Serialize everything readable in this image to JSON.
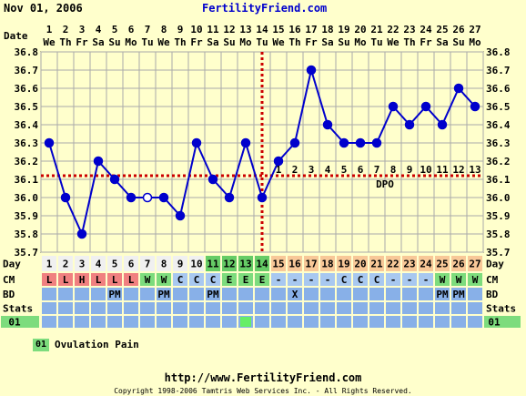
{
  "header": {
    "date": "Nov 01, 2006",
    "site": "FertilityFriend.com"
  },
  "row_labels": {
    "date": "Date",
    "day": "Day",
    "cm": "CM",
    "bd": "BD",
    "stats": "Stats",
    "custom": "01"
  },
  "chart_data": {
    "type": "line",
    "x": [
      1,
      2,
      3,
      4,
      5,
      6,
      7,
      8,
      9,
      10,
      11,
      12,
      13,
      14,
      15,
      16,
      17,
      18,
      19,
      20,
      21,
      22,
      23,
      24,
      25,
      26,
      27
    ],
    "date_numbers": [
      "1",
      "2",
      "3",
      "4",
      "5",
      "6",
      "7",
      "8",
      "9",
      "10",
      "11",
      "12",
      "13",
      "14",
      "15",
      "16",
      "17",
      "18",
      "19",
      "20",
      "21",
      "22",
      "23",
      "24",
      "25",
      "26",
      "27"
    ],
    "weekdays": [
      "We",
      "Th",
      "Fr",
      "Sa",
      "Su",
      "Mo",
      "Tu",
      "We",
      "Th",
      "Fr",
      "Sa",
      "Su",
      "Mo",
      "Tu",
      "We",
      "Th",
      "Fr",
      "Sa",
      "Su",
      "Mo",
      "Tu",
      "We",
      "Th",
      "Fr",
      "Sa",
      "Su",
      "Mo"
    ],
    "temperatures": [
      36.3,
      36.0,
      35.8,
      36.2,
      36.1,
      36.0,
      36.0,
      36.0,
      35.9,
      36.3,
      36.1,
      36.0,
      36.3,
      36.0,
      36.2,
      36.3,
      36.7,
      36.4,
      36.3,
      36.3,
      36.3,
      36.5,
      36.4,
      36.5,
      36.4,
      36.6,
      36.5
    ],
    "hollow_points": [
      7
    ],
    "ylim": [
      35.7,
      36.8
    ],
    "yticks": [
      "36.8",
      "36.7",
      "36.6",
      "36.5",
      "36.4",
      "36.3",
      "36.2",
      "36.1",
      "36.0",
      "35.9",
      "35.8",
      "35.7"
    ],
    "coverline": 36.12,
    "ovulation_day": 14,
    "dpo_numbers": [
      "1",
      "2",
      "3",
      "4",
      "5",
      "6",
      "7",
      "8",
      "9",
      "10",
      "11",
      "12",
      "13"
    ],
    "dpo_label": "DPO",
    "cycle_days": [
      "1",
      "2",
      "3",
      "4",
      "5",
      "6",
      "7",
      "8",
      "9",
      "10",
      "11",
      "12",
      "13",
      "14",
      "15",
      "16",
      "17",
      "18",
      "19",
      "20",
      "21",
      "22",
      "23",
      "24",
      "25",
      "26",
      "27"
    ],
    "cycle_phases": [
      "none",
      "none",
      "none",
      "none",
      "none",
      "none",
      "none",
      "none",
      "none",
      "none",
      "fertile",
      "fertile",
      "fertile",
      "fertile",
      "luteal",
      "luteal",
      "luteal",
      "luteal",
      "luteal",
      "luteal",
      "luteal",
      "luteal",
      "luteal",
      "luteal",
      "luteal",
      "luteal",
      "luteal"
    ],
    "cm": [
      "L",
      "L",
      "H",
      "L",
      "L",
      "L",
      "W",
      "W",
      "C",
      "C",
      "C",
      "E",
      "E",
      "E",
      "-",
      "-",
      "-",
      "-",
      "C",
      "C",
      "C",
      "-",
      "-",
      "-",
      "W",
      "W",
      "W"
    ],
    "cm_colors": {
      "L": "#f08080",
      "H": "#f08080",
      "W": "#7ddc7d",
      "C": "#a8c8f0",
      "E": "#7ddc7d",
      "-": "#a8c8f0"
    },
    "bd": [
      "",
      "",
      "",
      "",
      "PM",
      "",
      "",
      "PM",
      "",
      "",
      "PM",
      "",
      "",
      "",
      "",
      "X",
      "",
      "",
      "",
      "",
      "",
      "",
      "",
      "",
      "PM",
      "PM",
      ""
    ],
    "custom_marks": [
      13
    ],
    "colors": {
      "line": "#0000cc",
      "coverline": "#cc0000",
      "grid": "#aaaaaa",
      "plot_bg": "#ffffcc",
      "cell_bg": "#88b0e8",
      "day_none": "#f0f0f0",
      "day_fertile": "#66cc66",
      "day_luteal": "#f8c898",
      "custom_mark": "#66ee66"
    }
  },
  "legend": {
    "code": "01",
    "label": "Ovulation Pain"
  },
  "footer": {
    "url": "http://www.FertilityFriend.com",
    "copyright": "Copyright 1998-2006 Tamtris Web Services Inc. - All Rights Reserved."
  }
}
